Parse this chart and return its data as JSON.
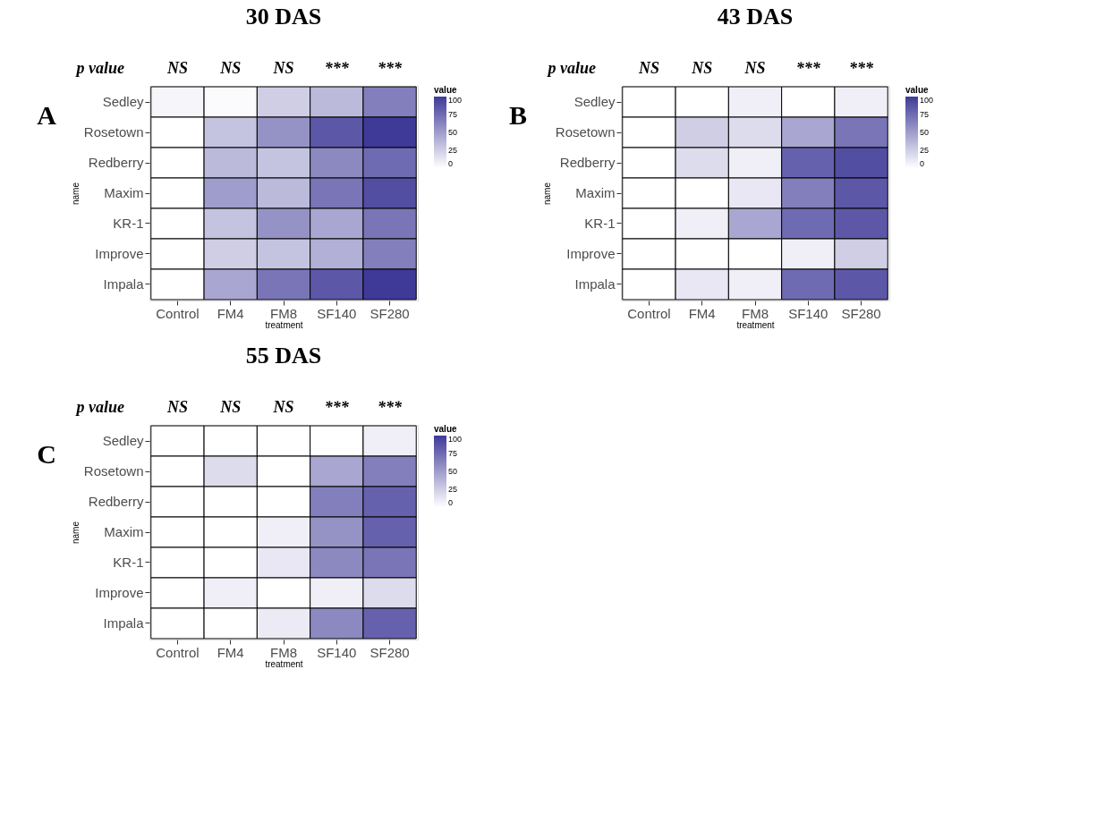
{
  "chart_data": [
    {
      "type": "heatmap",
      "title": "30 DAS",
      "xlabel": "treatment",
      "ylabel": "name",
      "clabel": "value",
      "clim": [
        0,
        100
      ],
      "cticks": [
        0,
        25,
        50,
        75,
        100
      ],
      "categories": [
        "Control",
        "FM4",
        "FM8",
        "SF140",
        "SF280"
      ],
      "y_categories": [
        "Sedley",
        "Rosetown",
        "Redberry",
        "Maxim",
        "KR-1",
        "Improve",
        "Impala"
      ],
      "cells": [
        [
          5,
          2,
          25,
          35,
          65
        ],
        [
          0,
          30,
          55,
          85,
          100
        ],
        [
          0,
          35,
          30,
          60,
          75
        ],
        [
          0,
          50,
          35,
          70,
          90
        ],
        [
          0,
          30,
          55,
          45,
          70
        ],
        [
          0,
          25,
          30,
          40,
          65
        ],
        [
          0,
          45,
          70,
          85,
          100
        ]
      ],
      "annotations": [
        "A",
        "p value",
        "NS",
        "NS",
        "NS",
        "***",
        "***"
      ]
    },
    {
      "type": "heatmap",
      "title": "43 DAS",
      "xlabel": "treatment",
      "ylabel": "name",
      "clabel": "value",
      "clim": [
        0,
        100
      ],
      "cticks": [
        0,
        25,
        50,
        75,
        100
      ],
      "categories": [
        "Control",
        "FM4",
        "FM8",
        "SF140",
        "SF280"
      ],
      "y_categories": [
        "Sedley",
        "Rosetown",
        "Redberry",
        "Maxim",
        "KR-1",
        "Improve",
        "Impala"
      ],
      "cells": [
        [
          0,
          0,
          8,
          0,
          8
        ],
        [
          0,
          25,
          18,
          45,
          70
        ],
        [
          0,
          18,
          8,
          80,
          90
        ],
        [
          0,
          0,
          12,
          65,
          85
        ],
        [
          0,
          8,
          45,
          75,
          85
        ],
        [
          0,
          0,
          0,
          8,
          25
        ],
        [
          0,
          12,
          8,
          75,
          85
        ]
      ],
      "annotations": [
        "B",
        "p value",
        "NS",
        "NS",
        "NS",
        "***",
        "***"
      ]
    },
    {
      "type": "heatmap",
      "title": "55 DAS",
      "xlabel": "treatment",
      "ylabel": "name",
      "clabel": "value",
      "clim": [
        0,
        100
      ],
      "cticks": [
        0,
        25,
        50,
        75,
        100
      ],
      "categories": [
        "Control",
        "FM4",
        "FM8",
        "SF140",
        "SF280"
      ],
      "y_categories": [
        "Sedley",
        "Rosetown",
        "Redberry",
        "Maxim",
        "KR-1",
        "Improve",
        "Impala"
      ],
      "cells": [
        [
          0,
          0,
          0,
          0,
          8
        ],
        [
          0,
          18,
          0,
          45,
          65
        ],
        [
          0,
          0,
          0,
          65,
          80
        ],
        [
          0,
          0,
          8,
          55,
          80
        ],
        [
          0,
          0,
          12,
          60,
          70
        ],
        [
          0,
          8,
          0,
          8,
          18
        ],
        [
          0,
          0,
          10,
          60,
          80
        ]
      ],
      "annotations": [
        "C",
        "p value",
        "NS",
        "NS",
        "NS",
        "***",
        "***"
      ]
    }
  ]
}
